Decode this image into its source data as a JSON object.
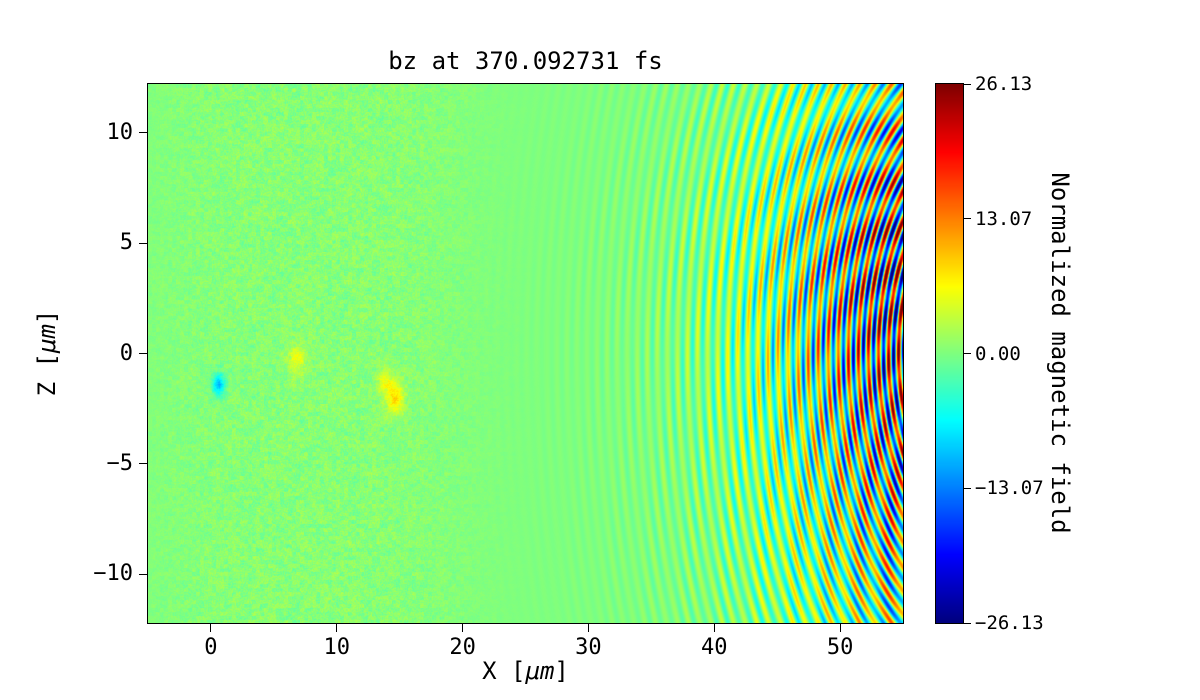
{
  "chart_data": {
    "type": "heatmap",
    "title": "bz at 370.092731 fs",
    "xlabel": {
      "prefix": "X [",
      "unit": "μm",
      "suffix": "]"
    },
    "ylabel": {
      "prefix": "Z [",
      "unit": "μm",
      "suffix": "]"
    },
    "x_range": [
      -5,
      55
    ],
    "z_range": [
      -12.2,
      12.2
    ],
    "x_tick_values": [
      0,
      10,
      20,
      30,
      40,
      50
    ],
    "x_tick_labels": [
      "0",
      "10",
      "20",
      "30",
      "40",
      "50"
    ],
    "z_tick_values": [
      10,
      5,
      0,
      -5,
      -10
    ],
    "z_tick_labels": [
      "10",
      "5",
      "0",
      "−5",
      "−10"
    ],
    "grid": false,
    "legend": "none",
    "colormap": "jet",
    "clim": [
      -26.13,
      26.13
    ],
    "colorbar": {
      "label": "Normalized magnetic field",
      "tick_values": [
        26.13,
        13.07,
        0,
        -13.07,
        -26.13
      ],
      "tick_labels": [
        "26.13",
        "13.07",
        "0.00",
        "−13.07",
        "−26.13"
      ]
    },
    "field_model": {
      "description": "Curved laser wavefront arcs concentric about a point right of the plot on the z=0 axis; oscillation amplitude grows toward the right edge (reaching the ±26 color limits near x=55) and fades out by x≈30; uniform green zero-field background elsewhere with faint yellowish speckle noise in the left half (x≈-5..22) and a few small colored blobs.",
      "arc_center_x": 62,
      "z_scale": 0.92,
      "wavelength_um": 0.8,
      "arc_inner_r": 7,
      "arc_decay": 11,
      "peak_amplitude": 26,
      "phase": 0.7,
      "angular_mod_depth": 0.2,
      "upper_boost": 0.25,
      "upper_z": 4,
      "upper_sigma": 6,
      "noise_center_x": 8,
      "noise_half_width": 13,
      "noise_amplitude": 2.6,
      "spots": [
        {
          "x": 0.6,
          "z": -1.4,
          "amp": -10,
          "sigma": 0.35
        },
        {
          "x": 14.6,
          "z": -2.0,
          "amp": 8,
          "sigma": 0.5
        },
        {
          "x": 13.8,
          "z": -1.2,
          "amp": 5,
          "sigma": 0.4
        },
        {
          "x": 6.8,
          "z": -0.3,
          "amp": 5,
          "sigma": 0.5
        }
      ]
    }
  }
}
